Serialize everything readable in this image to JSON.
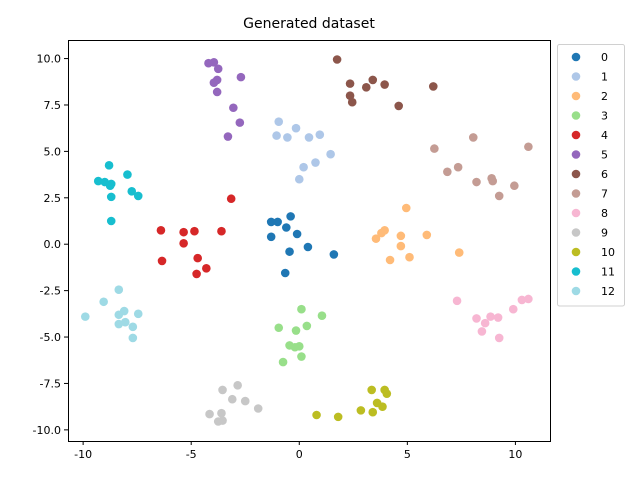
{
  "chart_data": {
    "type": "scatter",
    "title": "Generated dataset",
    "xlabel": "",
    "ylabel": "",
    "xlim": [
      -10.7,
      11.6
    ],
    "ylim": [
      -10.6,
      11.0
    ],
    "xticks": [
      -10,
      -5,
      0,
      5,
      10
    ],
    "yticks": [
      -10.0,
      -7.5,
      -5.0,
      -2.5,
      0.0,
      2.5,
      5.0,
      7.5,
      10.0
    ],
    "grid": false,
    "legend_position": "upper-right-outside",
    "series": [
      {
        "name": "0",
        "color": "#1f77b4",
        "points": [
          [
            -1.3,
            1.2
          ],
          [
            -1.0,
            1.2
          ],
          [
            -0.4,
            1.5
          ],
          [
            -1.3,
            0.4
          ],
          [
            -0.6,
            0.9
          ],
          [
            -0.1,
            0.55
          ],
          [
            0.4,
            -0.15
          ],
          [
            -0.45,
            -0.4
          ],
          [
            1.6,
            -0.55
          ],
          [
            -0.65,
            -1.55
          ]
        ]
      },
      {
        "name": "1",
        "color": "#aec7e8",
        "points": [
          [
            -0.95,
            6.6
          ],
          [
            -1.05,
            5.85
          ],
          [
            -0.55,
            5.75
          ],
          [
            -0.15,
            6.25
          ],
          [
            0.45,
            5.75
          ],
          [
            0.95,
            5.9
          ],
          [
            1.45,
            4.85
          ],
          [
            0.75,
            4.4
          ],
          [
            0.2,
            4.15
          ],
          [
            0.0,
            3.5
          ]
        ]
      },
      {
        "name": "2",
        "color": "#ffbb78",
        "points": [
          [
            3.55,
            0.3
          ],
          [
            3.8,
            0.6
          ],
          [
            3.95,
            0.75
          ],
          [
            4.2,
            -0.85
          ],
          [
            4.7,
            0.45
          ],
          [
            4.7,
            -0.1
          ],
          [
            4.95,
            1.95
          ],
          [
            5.1,
            -0.7
          ],
          [
            5.9,
            0.5
          ],
          [
            7.4,
            -0.45
          ]
        ]
      },
      {
        "name": "3",
        "color": "#98df8a",
        "points": [
          [
            0.1,
            -3.5
          ],
          [
            1.05,
            -3.85
          ],
          [
            -0.95,
            -4.5
          ],
          [
            -0.15,
            -4.65
          ],
          [
            0.35,
            -4.4
          ],
          [
            -0.45,
            -5.45
          ],
          [
            -0.2,
            -5.55
          ],
          [
            0.0,
            -5.5
          ],
          [
            0.1,
            -6.05
          ],
          [
            -0.75,
            -6.35
          ]
        ]
      },
      {
        "name": "4",
        "color": "#d62728",
        "points": [
          [
            -3.15,
            2.45
          ],
          [
            -6.4,
            0.75
          ],
          [
            -5.35,
            0.65
          ],
          [
            -4.85,
            0.7
          ],
          [
            -3.6,
            0.7
          ],
          [
            -5.35,
            0.05
          ],
          [
            -6.35,
            -0.9
          ],
          [
            -4.7,
            -0.75
          ],
          [
            -4.3,
            -1.3
          ],
          [
            -4.75,
            -1.6
          ]
        ]
      },
      {
        "name": "5",
        "color": "#9467bd",
        "points": [
          [
            -4.2,
            9.75
          ],
          [
            -3.95,
            9.8
          ],
          [
            -3.75,
            9.45
          ],
          [
            -2.7,
            9.0
          ],
          [
            -3.8,
            8.85
          ],
          [
            -3.95,
            8.7
          ],
          [
            -3.8,
            8.2
          ],
          [
            -3.05,
            7.35
          ],
          [
            -2.75,
            6.55
          ],
          [
            -3.3,
            5.8
          ]
        ]
      },
      {
        "name": "6",
        "color": "#8c564b",
        "points": [
          [
            1.75,
            9.95
          ],
          [
            3.4,
            8.85
          ],
          [
            2.35,
            8.65
          ],
          [
            3.95,
            8.6
          ],
          [
            3.1,
            8.45
          ],
          [
            6.2,
            8.5
          ],
          [
            2.35,
            8.0
          ],
          [
            2.45,
            7.65
          ],
          [
            4.6,
            7.45
          ]
        ]
      },
      {
        "name": "7",
        "color": "#c49c94",
        "points": [
          [
            8.05,
            5.75
          ],
          [
            10.6,
            5.25
          ],
          [
            6.25,
            5.15
          ],
          [
            7.35,
            4.15
          ],
          [
            6.85,
            3.9
          ],
          [
            8.2,
            3.35
          ],
          [
            8.9,
            3.55
          ],
          [
            8.95,
            3.4
          ],
          [
            9.95,
            3.15
          ],
          [
            9.25,
            2.6
          ]
        ]
      },
      {
        "name": "8",
        "color": "#f7b6d2",
        "points": [
          [
            7.3,
            -3.05
          ],
          [
            10.3,
            -3.0
          ],
          [
            10.6,
            -2.95
          ],
          [
            9.9,
            -3.5
          ],
          [
            8.2,
            -4.0
          ],
          [
            8.85,
            -3.9
          ],
          [
            9.2,
            -3.95
          ],
          [
            8.6,
            -4.25
          ],
          [
            8.45,
            -4.7
          ],
          [
            9.25,
            -5.05
          ]
        ]
      },
      {
        "name": "9",
        "color": "#c7c7c7",
        "points": [
          [
            -2.85,
            -7.6
          ],
          [
            -3.55,
            -7.85
          ],
          [
            -3.1,
            -8.35
          ],
          [
            -2.5,
            -8.45
          ],
          [
            -1.9,
            -8.85
          ],
          [
            -4.15,
            -9.15
          ],
          [
            -3.6,
            -9.1
          ],
          [
            -3.55,
            -9.5
          ],
          [
            -3.75,
            -9.55
          ]
        ]
      },
      {
        "name": "10",
        "color": "#bcbd22",
        "points": [
          [
            3.35,
            -7.85
          ],
          [
            3.95,
            -7.85
          ],
          [
            4.05,
            -8.05
          ],
          [
            3.6,
            -8.55
          ],
          [
            3.85,
            -8.75
          ],
          [
            2.85,
            -8.95
          ],
          [
            3.4,
            -9.05
          ],
          [
            0.8,
            -9.2
          ],
          [
            1.8,
            -9.3
          ]
        ]
      },
      {
        "name": "11",
        "color": "#17becf",
        "points": [
          [
            -8.8,
            4.25
          ],
          [
            -7.95,
            3.75
          ],
          [
            -9.3,
            3.4
          ],
          [
            -9.0,
            3.35
          ],
          [
            -8.7,
            3.25
          ],
          [
            -8.75,
            3.15
          ],
          [
            -7.75,
            2.85
          ],
          [
            -7.45,
            2.6
          ],
          [
            -8.7,
            2.55
          ],
          [
            -8.7,
            1.25
          ]
        ]
      },
      {
        "name": "12",
        "color": "#9edae5",
        "points": [
          [
            -8.35,
            -2.45
          ],
          [
            -9.05,
            -3.1
          ],
          [
            -9.9,
            -3.9
          ],
          [
            -8.1,
            -3.6
          ],
          [
            -7.45,
            -3.75
          ],
          [
            -8.35,
            -3.8
          ],
          [
            -8.35,
            -4.3
          ],
          [
            -8.05,
            -4.2
          ],
          [
            -7.7,
            -4.45
          ],
          [
            -7.7,
            -5.05
          ]
        ]
      }
    ]
  }
}
